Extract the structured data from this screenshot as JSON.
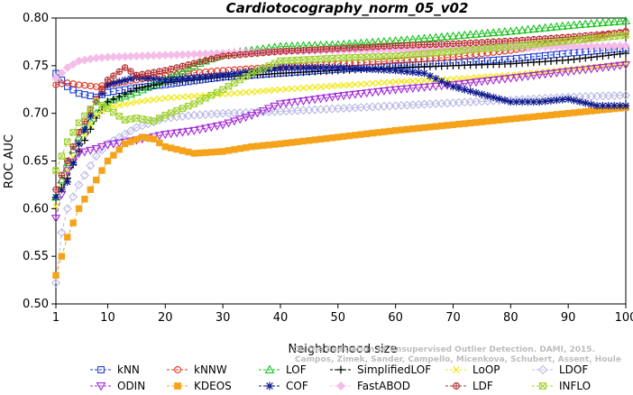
{
  "chart_data": {
    "type": "line",
    "title": "Cardiotocography_norm_05_v02",
    "xlabel": "Neighborhood size",
    "ylabel": "ROC AUC",
    "xlim": [
      1,
      100
    ],
    "ylim": [
      0.5,
      0.8
    ],
    "xticks": [
      1,
      10,
      20,
      30,
      40,
      50,
      60,
      70,
      80,
      90,
      100
    ],
    "yticks": [
      0.5,
      0.55,
      0.6,
      0.65,
      0.7,
      0.75,
      0.8
    ],
    "xtick_labels": [
      "1",
      "10",
      "20",
      "30",
      "40",
      "50",
      "60",
      "70",
      "80",
      "90",
      "100"
    ],
    "ytick_labels": [
      "0.50",
      "0.55",
      "0.60",
      "0.65",
      "0.70",
      "0.75",
      "0.80"
    ],
    "legend_position": "bottom",
    "credit": [
      "Campos, Zimek, Sander, Campello, Micenkova, Schubert, Assent, Houle",
      "On the Evaluation of Unsupervised Outlier Detection. DAMI, 2015."
    ],
    "series": [
      {
        "name": "kNN",
        "color": "#1f3fd6",
        "marker": "square",
        "x": [
          1,
          3,
          5,
          8,
          10,
          15,
          20,
          30,
          40,
          50,
          60,
          70,
          80,
          90,
          100
        ],
        "y": [
          0.742,
          0.728,
          0.721,
          0.717,
          0.722,
          0.727,
          0.73,
          0.738,
          0.742,
          0.746,
          0.75,
          0.753,
          0.757,
          0.763,
          0.768
        ]
      },
      {
        "name": "kNNW",
        "color": "#e0311f",
        "marker": "circle",
        "x": [
          1,
          3,
          5,
          8,
          10,
          15,
          20,
          30,
          40,
          50,
          60,
          70,
          80,
          90,
          100
        ],
        "y": [
          0.73,
          0.732,
          0.73,
          0.728,
          0.73,
          0.735,
          0.74,
          0.745,
          0.749,
          0.752,
          0.755,
          0.759,
          0.766,
          0.775,
          0.786
        ]
      },
      {
        "name": "LOF",
        "color": "#17c21e",
        "marker": "triangle-up",
        "x": [
          1,
          3,
          5,
          8,
          10,
          15,
          20,
          25,
          30,
          35,
          40,
          50,
          60,
          70,
          80,
          90,
          100
        ],
        "y": [
          0.612,
          0.648,
          0.675,
          0.7,
          0.712,
          0.722,
          0.735,
          0.75,
          0.762,
          0.766,
          0.77,
          0.772,
          0.776,
          0.781,
          0.786,
          0.792,
          0.797
        ]
      },
      {
        "name": "SimplifiedLOF",
        "color": "#000000",
        "marker": "plus",
        "x": [
          1,
          3,
          5,
          8,
          10,
          15,
          20,
          30,
          40,
          50,
          60,
          70,
          80,
          90,
          100
        ],
        "y": [
          0.612,
          0.632,
          0.66,
          0.695,
          0.712,
          0.726,
          0.732,
          0.738,
          0.742,
          0.745,
          0.748,
          0.75,
          0.752,
          0.756,
          0.763
        ]
      },
      {
        "name": "LoOP",
        "color": "#f2e81d",
        "marker": "x",
        "x": [
          1,
          3,
          5,
          8,
          10,
          15,
          20,
          30,
          40,
          50,
          60,
          70,
          80,
          90,
          100
        ],
        "y": [
          0.602,
          0.64,
          0.668,
          0.698,
          0.706,
          0.712,
          0.716,
          0.72,
          0.725,
          0.729,
          0.733,
          0.736,
          0.74,
          0.746,
          0.752
        ]
      },
      {
        "name": "LDOF",
        "color": "#b8b8e6",
        "marker": "diamond",
        "x": [
          1,
          2,
          3,
          5,
          8,
          10,
          15,
          20,
          25,
          30,
          40,
          50,
          60,
          70,
          80,
          90,
          100
        ],
        "y": [
          0.522,
          0.575,
          0.6,
          0.625,
          0.655,
          0.668,
          0.685,
          0.695,
          0.698,
          0.7,
          0.702,
          0.705,
          0.708,
          0.711,
          0.714,
          0.717,
          0.719
        ]
      },
      {
        "name": "ODIN",
        "color": "#a52ad6",
        "marker": "triangle-down",
        "x": [
          1,
          3,
          5,
          8,
          10,
          15,
          20,
          25,
          30,
          35,
          40,
          50,
          60,
          70,
          80,
          90,
          100
        ],
        "y": [
          0.59,
          0.64,
          0.658,
          0.663,
          0.667,
          0.672,
          0.678,
          0.682,
          0.688,
          0.698,
          0.71,
          0.718,
          0.725,
          0.73,
          0.737,
          0.744,
          0.751
        ]
      },
      {
        "name": "KDEOS",
        "color": "#f4a31a",
        "marker": "square-filled",
        "x": [
          1,
          2,
          3,
          5,
          8,
          10,
          13,
          16,
          18,
          20,
          25,
          30,
          35,
          40,
          50,
          60,
          70,
          80,
          90,
          100
        ],
        "y": [
          0.53,
          0.55,
          0.57,
          0.6,
          0.63,
          0.65,
          0.668,
          0.675,
          0.673,
          0.665,
          0.658,
          0.66,
          0.665,
          0.668,
          0.675,
          0.682,
          0.688,
          0.694,
          0.7,
          0.706
        ]
      },
      {
        "name": "COF",
        "color": "#0d1a8c",
        "marker": "asterisk",
        "x": [
          1,
          3,
          5,
          8,
          10,
          15,
          20,
          30,
          40,
          50,
          60,
          65,
          70,
          75,
          80,
          85,
          90,
          95,
          100
        ],
        "y": [
          0.612,
          0.628,
          0.668,
          0.712,
          0.73,
          0.738,
          0.735,
          0.74,
          0.748,
          0.748,
          0.745,
          0.742,
          0.728,
          0.72,
          0.712,
          0.712,
          0.715,
          0.708,
          0.708
        ]
      },
      {
        "name": "FastABOD",
        "color": "#f5bce8",
        "marker": "diamond-filled",
        "x": [
          1,
          3,
          5,
          8,
          10,
          15,
          20,
          30,
          40,
          50,
          60,
          70,
          80,
          90,
          100
        ],
        "y": [
          0.737,
          0.748,
          0.755,
          0.758,
          0.759,
          0.76,
          0.761,
          0.763,
          0.765,
          0.766,
          0.767,
          0.768,
          0.769,
          0.77,
          0.771
        ]
      },
      {
        "name": "LDF",
        "color": "#b52a2a",
        "marker": "circle-plus",
        "x": [
          1,
          3,
          5,
          8,
          10,
          13,
          15,
          20,
          30,
          40,
          50,
          60,
          70,
          80,
          90,
          100
        ],
        "y": [
          0.62,
          0.65,
          0.68,
          0.715,
          0.735,
          0.748,
          0.74,
          0.745,
          0.76,
          0.765,
          0.768,
          0.771,
          0.773,
          0.776,
          0.78,
          0.785
        ]
      },
      {
        "name": "INFLO",
        "color": "#9fd12e",
        "marker": "square-x",
        "x": [
          1,
          3,
          5,
          8,
          10,
          13,
          15,
          18,
          20,
          25,
          30,
          35,
          40,
          50,
          60,
          70,
          80,
          90,
          100
        ],
        "y": [
          0.64,
          0.67,
          0.69,
          0.712,
          0.705,
          0.693,
          0.695,
          0.692,
          0.698,
          0.71,
          0.725,
          0.742,
          0.755,
          0.758,
          0.76,
          0.765,
          0.77,
          0.776,
          0.782
        ]
      }
    ]
  }
}
